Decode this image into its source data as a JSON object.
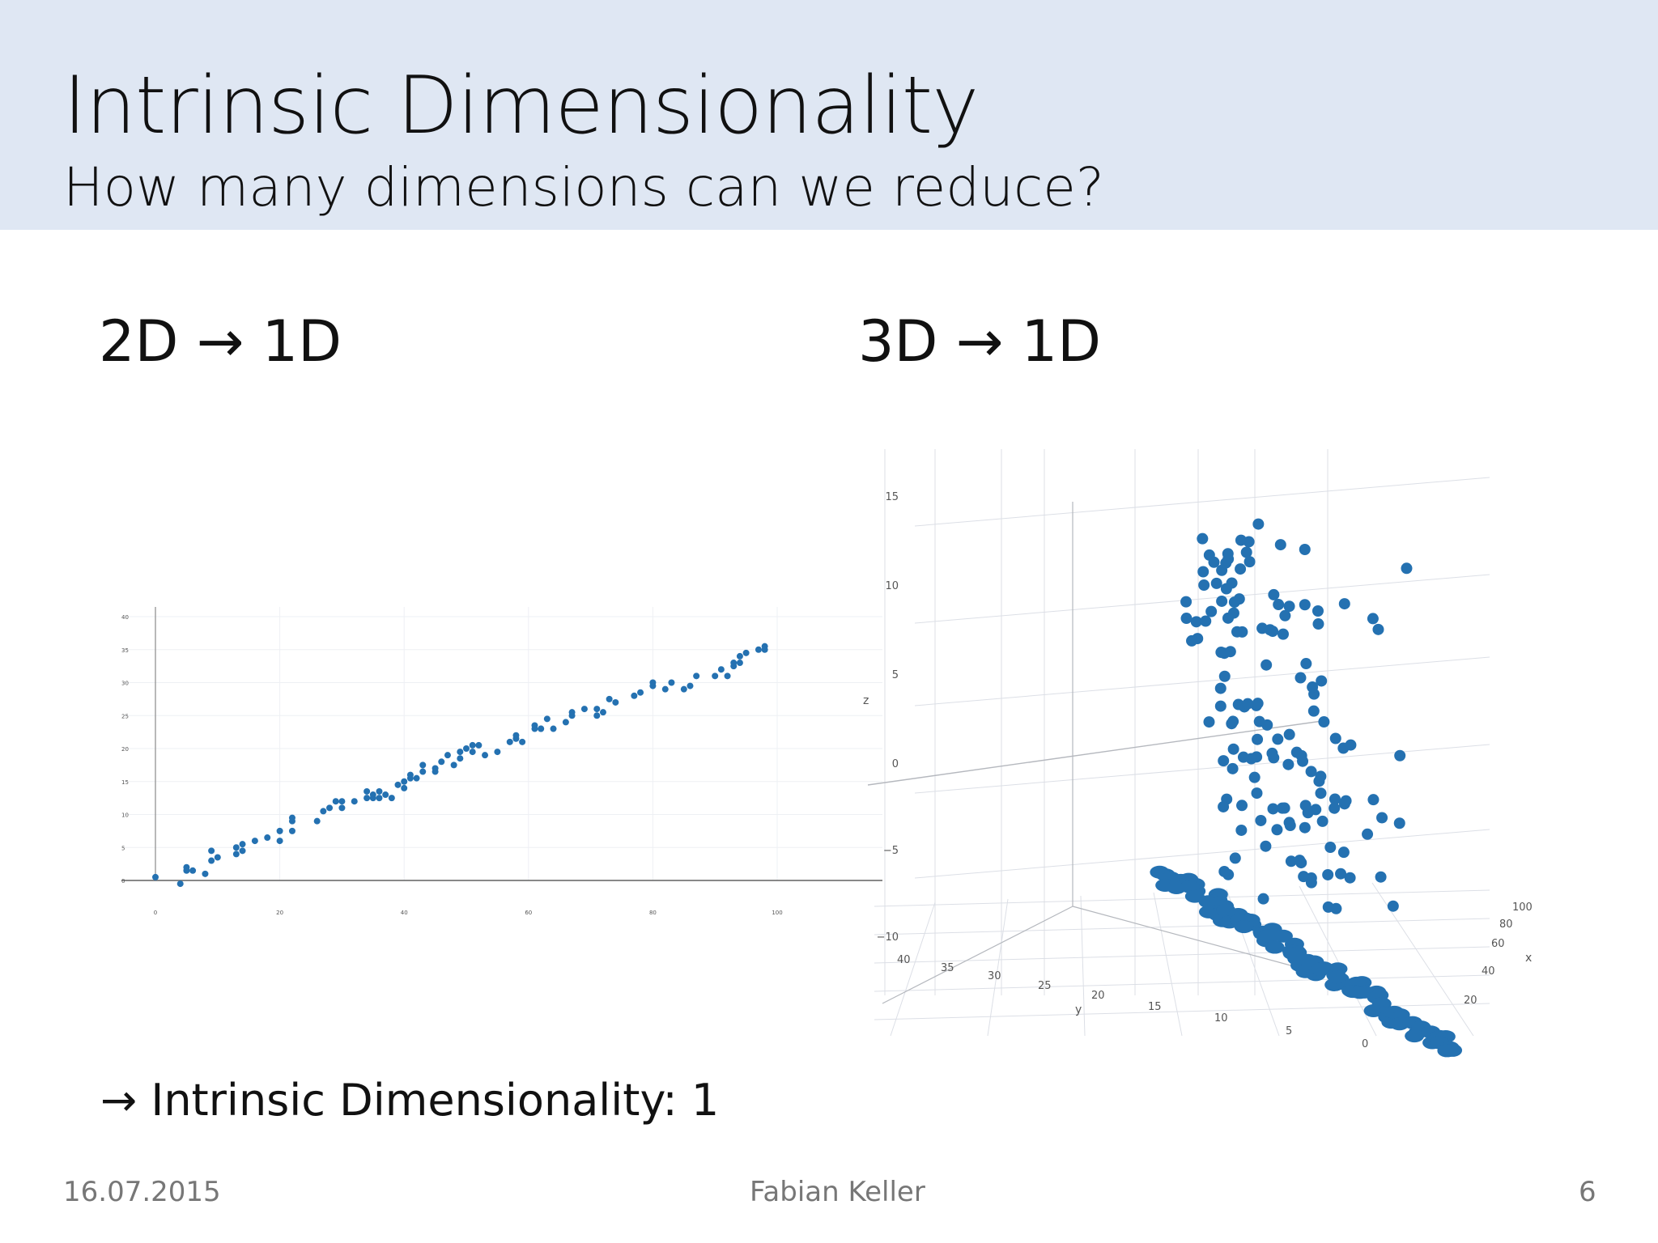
{
  "header": {
    "title": "Intrinsic Dimensionality",
    "subtitle": "How many dimensions can we reduce?"
  },
  "headings": {
    "left": "2D → 1D",
    "right": "3D → 1D"
  },
  "conclusion": "→ Intrinsic Dimensionality: 1",
  "footer": {
    "date": "16.07.2015",
    "author": "Fabian Keller",
    "page": "6"
  },
  "colors": {
    "header_bg": "#dfe7f3",
    "marker": "#2471b1"
  },
  "chart_data": [
    {
      "type": "scatter",
      "x": [
        0,
        4,
        5,
        5,
        6,
        8,
        9,
        9,
        10,
        13,
        13,
        14,
        14,
        16,
        18,
        20,
        20,
        22,
        22,
        22,
        26,
        27,
        28,
        29,
        30,
        30,
        32,
        34,
        34,
        35,
        35,
        36,
        36,
        37,
        38,
        39,
        40,
        40,
        41,
        41,
        42,
        43,
        43,
        45,
        45,
        46,
        47,
        48,
        49,
        49,
        50,
        51,
        51,
        52,
        53,
        55,
        57,
        58,
        58,
        59,
        61,
        61,
        62,
        62,
        63,
        64,
        66,
        67,
        67,
        69,
        71,
        71,
        72,
        73,
        74,
        77,
        78,
        80,
        80,
        82,
        83,
        85,
        86,
        87,
        90,
        91,
        92,
        93,
        93,
        94,
        94,
        95,
        97,
        98,
        98
      ],
      "y": [
        0.5,
        -0.5,
        1.5,
        2,
        1.5,
        1,
        3,
        4.5,
        3.5,
        5,
        4,
        5.5,
        4.5,
        6,
        6.5,
        6,
        7.5,
        9.5,
        9,
        7.5,
        9,
        10.5,
        11,
        12,
        11,
        12,
        12,
        12.5,
        13.5,
        12.5,
        13,
        12.5,
        13.5,
        13,
        12.5,
        14.5,
        15,
        14,
        15.5,
        16,
        15.5,
        16.5,
        17.5,
        17,
        16.5,
        18,
        19,
        17.5,
        19.5,
        18.5,
        20,
        19.5,
        20.5,
        20.5,
        19,
        19.5,
        21,
        21.5,
        22,
        21,
        23,
        23.5,
        23,
        23,
        24.5,
        23,
        24,
        25.5,
        25,
        26,
        25,
        26,
        25.5,
        27.5,
        27,
        28,
        28.5,
        30,
        29.5,
        29,
        30,
        29,
        29.5,
        31,
        31,
        32,
        31,
        32.5,
        33,
        33,
        34,
        34.5,
        35,
        35.5,
        35
      ],
      "xlim": [
        0,
        100
      ],
      "ylim": [
        0,
        40
      ],
      "xticks": [
        "0",
        "20",
        "40",
        "60",
        "80",
        "100"
      ],
      "yticks": [
        "0",
        "5",
        "10",
        "15",
        "20",
        "25",
        "30",
        "35",
        "40"
      ],
      "grid": true
    },
    {
      "type": "scatter",
      "projection": "3d",
      "xlabel": "x",
      "ylabel": "y",
      "zlabel": "z",
      "xticks": [
        "0",
        "20",
        "40",
        "60",
        "80",
        "100"
      ],
      "yticks": [
        "0",
        "5",
        "10",
        "15",
        "20",
        "25",
        "30",
        "35",
        "40"
      ],
      "zticks": [
        "15",
        "10",
        "5",
        "0",
        "−5",
        "−10"
      ],
      "grid": true
    }
  ]
}
